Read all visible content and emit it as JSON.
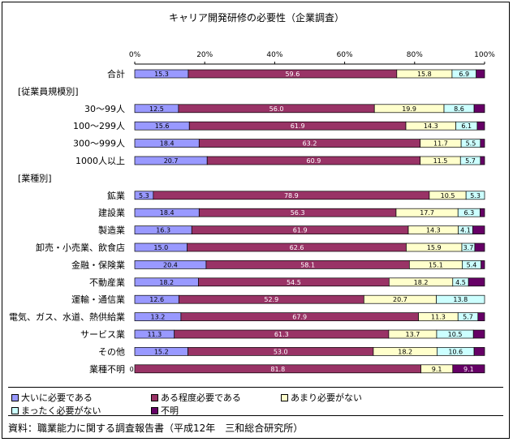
{
  "chart_data": {
    "type": "bar",
    "orientation": "horizontal",
    "stacked": true,
    "title": "キャリア開発研修の必要性（企業調査）",
    "xlim": [
      0,
      100
    ],
    "ticks": [
      {
        "value": 0,
        "label": "0%"
      },
      {
        "value": 20,
        "label": "20%"
      },
      {
        "value": 40,
        "label": "40%"
      },
      {
        "value": 60,
        "label": "60%"
      },
      {
        "value": 80,
        "label": "80%"
      },
      {
        "value": 100,
        "label": "100%"
      }
    ],
    "rows": [
      {
        "kind": "bar",
        "label": "合計",
        "values": [
          15.3,
          59.6,
          15.8,
          6.9,
          2.4
        ],
        "labels": [
          "15.3",
          "59.6",
          "15.8",
          "6.9",
          ""
        ]
      },
      {
        "kind": "header",
        "label": "[従業員規模別]"
      },
      {
        "kind": "bar",
        "label": "30～99人",
        "values": [
          12.5,
          56.0,
          19.9,
          8.6,
          3.0
        ],
        "labels": [
          "12.5",
          "56.0",
          "19.9",
          "8.6",
          ""
        ]
      },
      {
        "kind": "bar",
        "label": "100～299人",
        "values": [
          15.6,
          61.9,
          14.3,
          6.1,
          2.1
        ],
        "labels": [
          "15.6",
          "61.9",
          "14.3",
          "6.1",
          ""
        ]
      },
      {
        "kind": "bar",
        "label": "300～999人",
        "values": [
          18.4,
          63.2,
          11.7,
          5.5,
          1.2
        ],
        "labels": [
          "18.4",
          "63.2",
          "11.7",
          "5.5",
          ""
        ]
      },
      {
        "kind": "bar",
        "label": "1000人以上",
        "values": [
          20.7,
          60.9,
          11.5,
          5.7,
          1.2
        ],
        "labels": [
          "20.7",
          "60.9",
          "11.5",
          "5.7",
          ""
        ]
      },
      {
        "kind": "header",
        "label": "[業種別]"
      },
      {
        "kind": "bar",
        "label": "鉱業",
        "values": [
          5.3,
          78.9,
          10.5,
          5.3,
          0.0
        ],
        "labels": [
          "5.3",
          "78.9",
          "10.5",
          "5.3",
          ""
        ]
      },
      {
        "kind": "bar",
        "label": "建設業",
        "values": [
          18.4,
          56.3,
          17.7,
          6.3,
          1.3
        ],
        "labels": [
          "18.4",
          "56.3",
          "17.7",
          "6.3",
          ""
        ]
      },
      {
        "kind": "bar",
        "label": "製造業",
        "values": [
          16.3,
          61.9,
          14.3,
          4.1,
          3.4
        ],
        "labels": [
          "16.3",
          "61.9",
          "14.3",
          "4.1",
          ""
        ]
      },
      {
        "kind": "bar",
        "label": "卸売・小売業、飲食店",
        "values": [
          15.0,
          62.6,
          15.9,
          3.7,
          2.8
        ],
        "labels": [
          "15.0",
          "62.6",
          "15.9",
          "3.7",
          ""
        ]
      },
      {
        "kind": "bar",
        "label": "金融・保険業",
        "values": [
          20.4,
          58.1,
          15.1,
          5.4,
          1.0
        ],
        "labels": [
          "20.4",
          "58.1",
          "15.1",
          "5.4",
          ""
        ]
      },
      {
        "kind": "bar",
        "label": "不動産業",
        "values": [
          18.2,
          54.5,
          18.2,
          4.5,
          4.6
        ],
        "labels": [
          "18.2",
          "54.5",
          "18.2",
          "4.5",
          ""
        ]
      },
      {
        "kind": "bar",
        "label": "運輸・通信業",
        "values": [
          12.6,
          52.9,
          20.7,
          13.8,
          0.0
        ],
        "labels": [
          "12.6",
          "52.9",
          "20.7",
          "13.8",
          ""
        ]
      },
      {
        "kind": "bar",
        "label": "電気、ガス、水道、熱供給業",
        "values": [
          13.2,
          67.9,
          11.3,
          5.7,
          1.9
        ],
        "labels": [
          "13.2",
          "67.9",
          "11.3",
          "5.7",
          ""
        ]
      },
      {
        "kind": "bar",
        "label": "サービス業",
        "values": [
          11.3,
          61.3,
          13.7,
          10.5,
          3.2
        ],
        "labels": [
          "11.3",
          "61.3",
          "13.7",
          "10.5",
          ""
        ]
      },
      {
        "kind": "bar",
        "label": "その他",
        "values": [
          15.2,
          53.0,
          18.2,
          10.6,
          3.0
        ],
        "labels": [
          "15.2",
          "53.0",
          "18.2",
          "10.6",
          ""
        ]
      },
      {
        "kind": "bar",
        "label": "業種不明",
        "values": [
          0.0,
          81.8,
          9.1,
          0.0,
          9.1
        ],
        "labels": [
          "0.0",
          "81.8",
          "9.1",
          "",
          "9.1"
        ]
      }
    ],
    "series": [
      {
        "name": "大いに必要である",
        "color": "#9999ff"
      },
      {
        "name": "ある程度必要である",
        "color": "#993366"
      },
      {
        "name": "あまり必要がない",
        "color": "#ffffcc"
      },
      {
        "name": "まったく必要がない",
        "color": "#ccffff"
      },
      {
        "name": "不明",
        "color": "#660066"
      }
    ],
    "legend_position": "bottom",
    "source": "資料：職業能力に関する調査報告書（平成12年　三和総合研究所）"
  }
}
